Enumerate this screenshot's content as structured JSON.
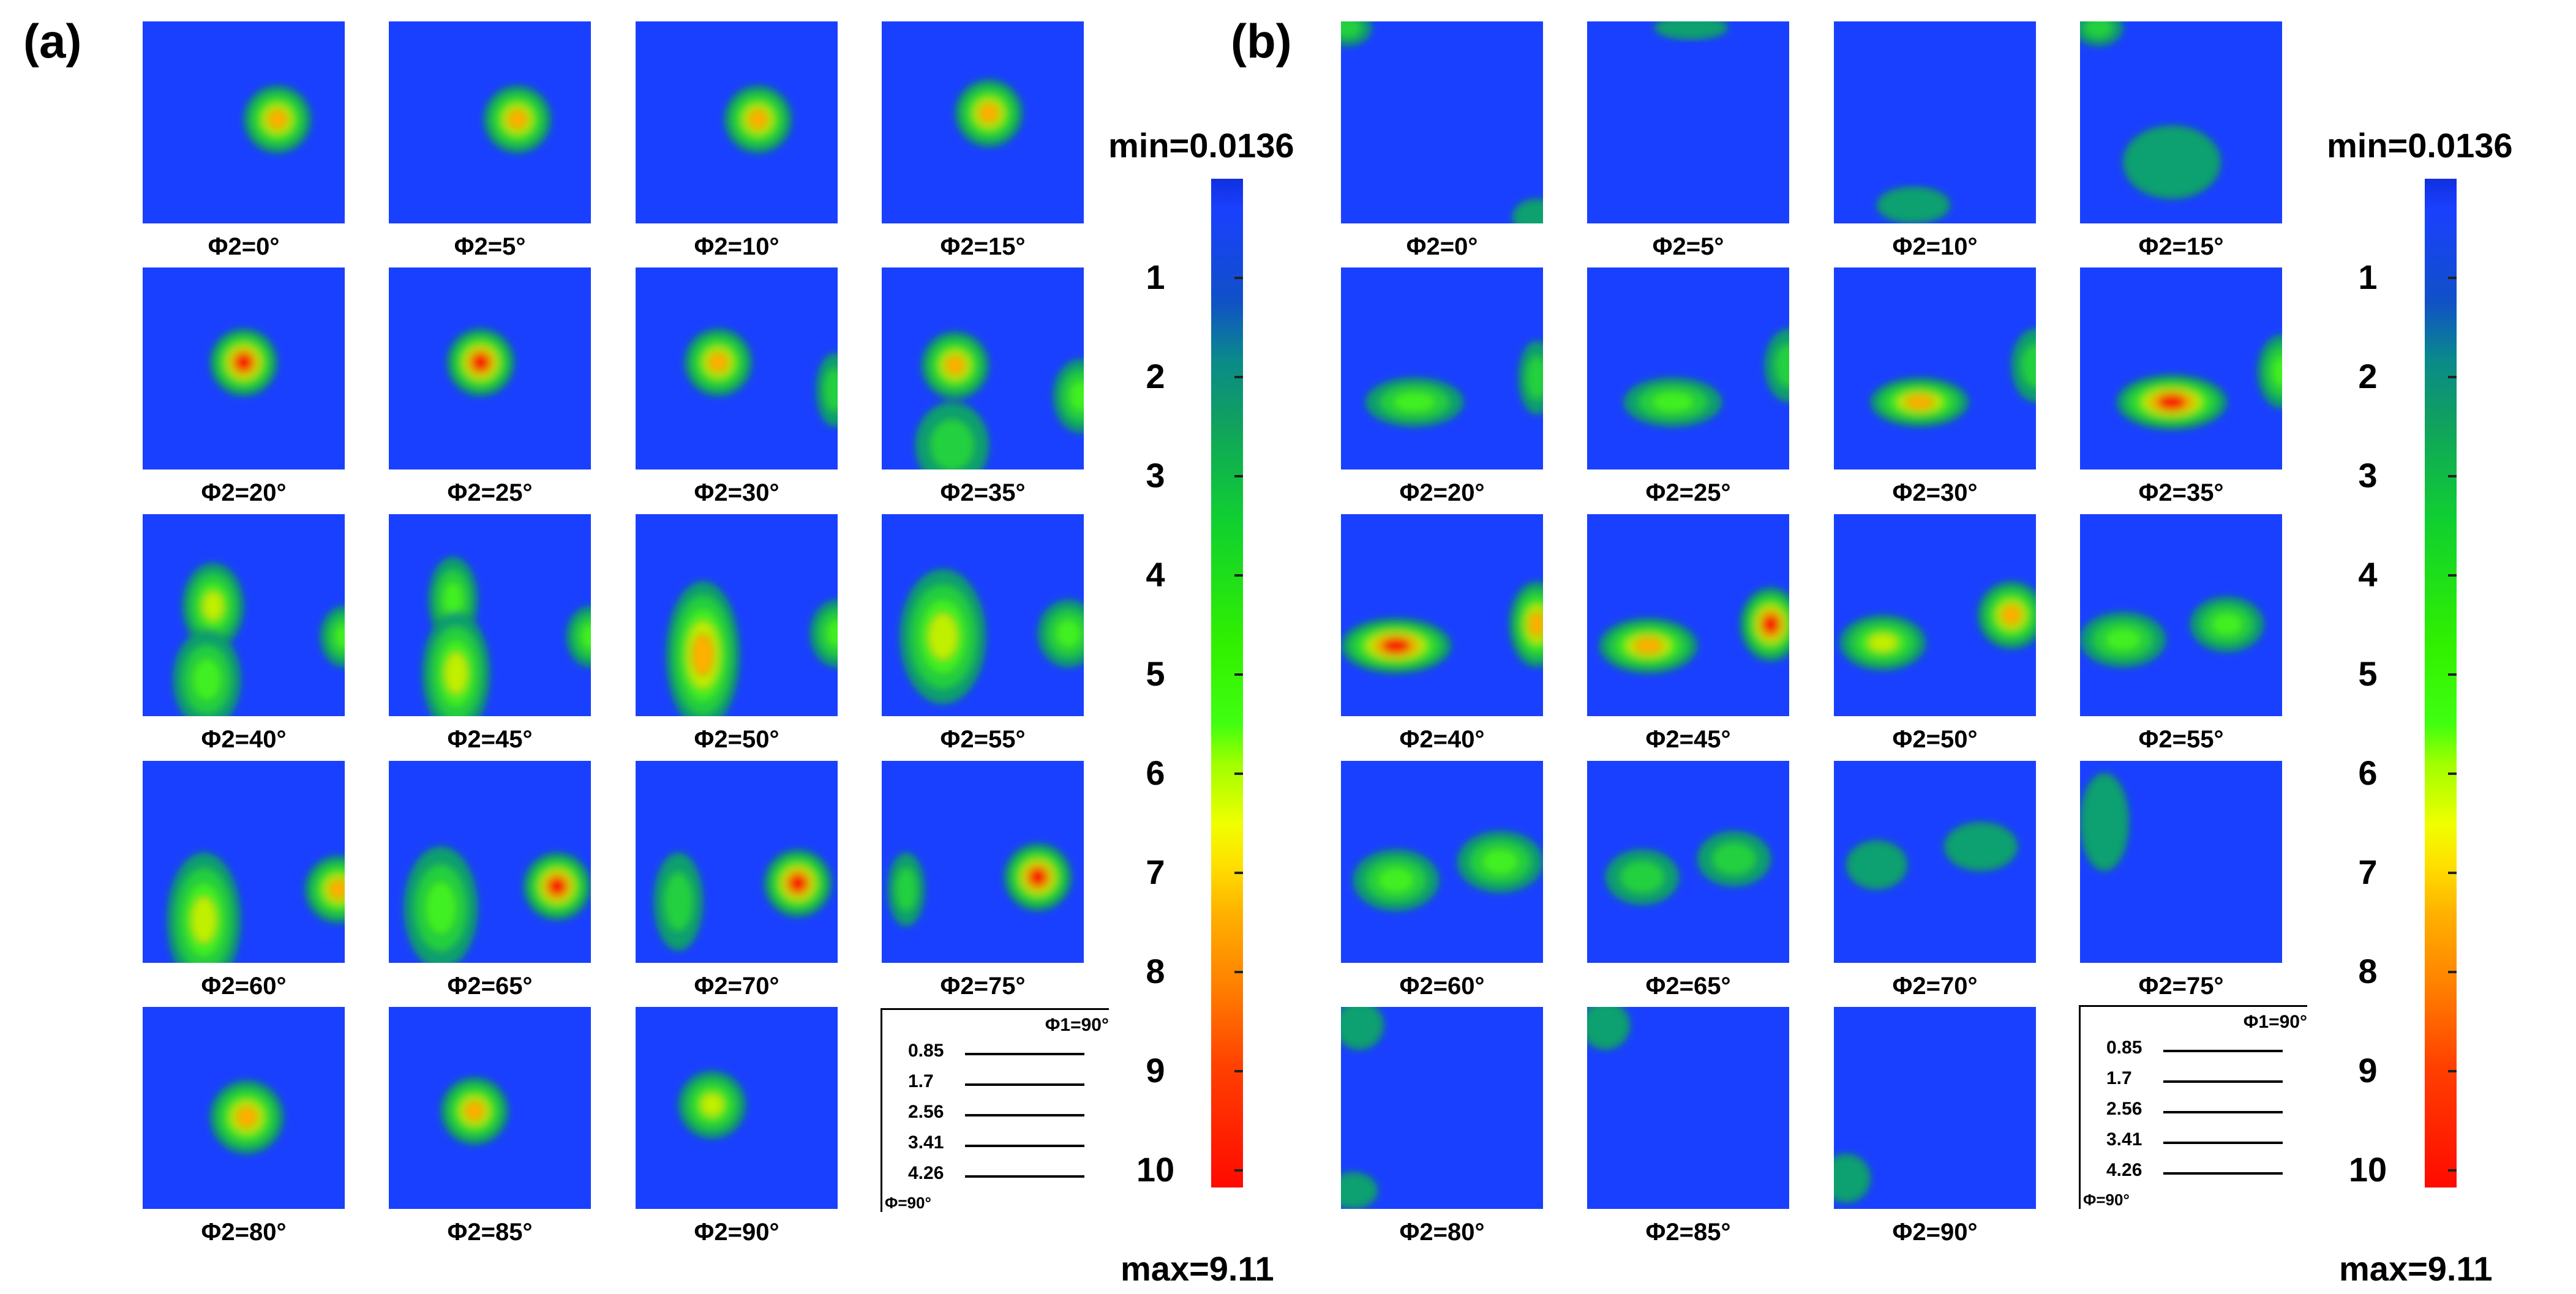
{
  "panels": {
    "a": {
      "letter": "(a)",
      "labels": [
        "Φ2=0°",
        "Φ2=5°",
        "Φ2=10°",
        "Φ2=15°",
        "Φ2=20°",
        "Φ2=25°",
        "Φ2=30°",
        "Φ2=35°",
        "Φ2=40°",
        "Φ2=45°",
        "Φ2=50°",
        "Φ2=55°",
        "Φ2=60°",
        "Φ2=65°",
        "Φ2=70°",
        "Φ2=75°",
        "Φ2=80°",
        "Φ2=85°",
        "Φ2=90°"
      ],
      "legend": {
        "phi1": "Φ1=90°",
        "phi": "Φ=90°",
        "levels": [
          "0.85",
          "1.7",
          "2.56",
          "3.41",
          "4.26"
        ]
      },
      "scale": {
        "min": "min=0.0136",
        "max": "max=9.11",
        "ticks": [
          "1",
          "2",
          "3",
          "4",
          "5",
          "6",
          "7",
          "8",
          "9",
          "10"
        ]
      }
    },
    "b": {
      "letter": "(b)",
      "labels": [
        "Φ2=0°",
        "Φ2=5°",
        "Φ2=10°",
        "Φ2=15°",
        "Φ2=20°",
        "Φ2=25°",
        "Φ2=30°",
        "Φ2=35°",
        "Φ2=40°",
        "Φ2=45°",
        "Φ2=50°",
        "Φ2=55°",
        "Φ2=60°",
        "Φ2=65°",
        "Φ2=70°",
        "Φ2=75°",
        "Φ2=80°",
        "Φ2=85°",
        "Φ2=90°"
      ],
      "legend": {
        "phi1": "Φ1=90°",
        "phi": "Φ=90°",
        "levels": [
          "0.85",
          "1.7",
          "2.56",
          "3.41",
          "4.26"
        ]
      },
      "scale": {
        "min": "min=0.0136",
        "max": "max=9.11",
        "ticks": [
          "1",
          "2",
          "3",
          "4",
          "5",
          "6",
          "7",
          "8",
          "9",
          "10"
        ]
      }
    }
  },
  "colors": {
    "background": "#1a40ff",
    "teal": "#10a070",
    "green": "#20e030",
    "yellow": "#f0f000",
    "orange": "#ff8000",
    "red": "#ff1000"
  }
}
